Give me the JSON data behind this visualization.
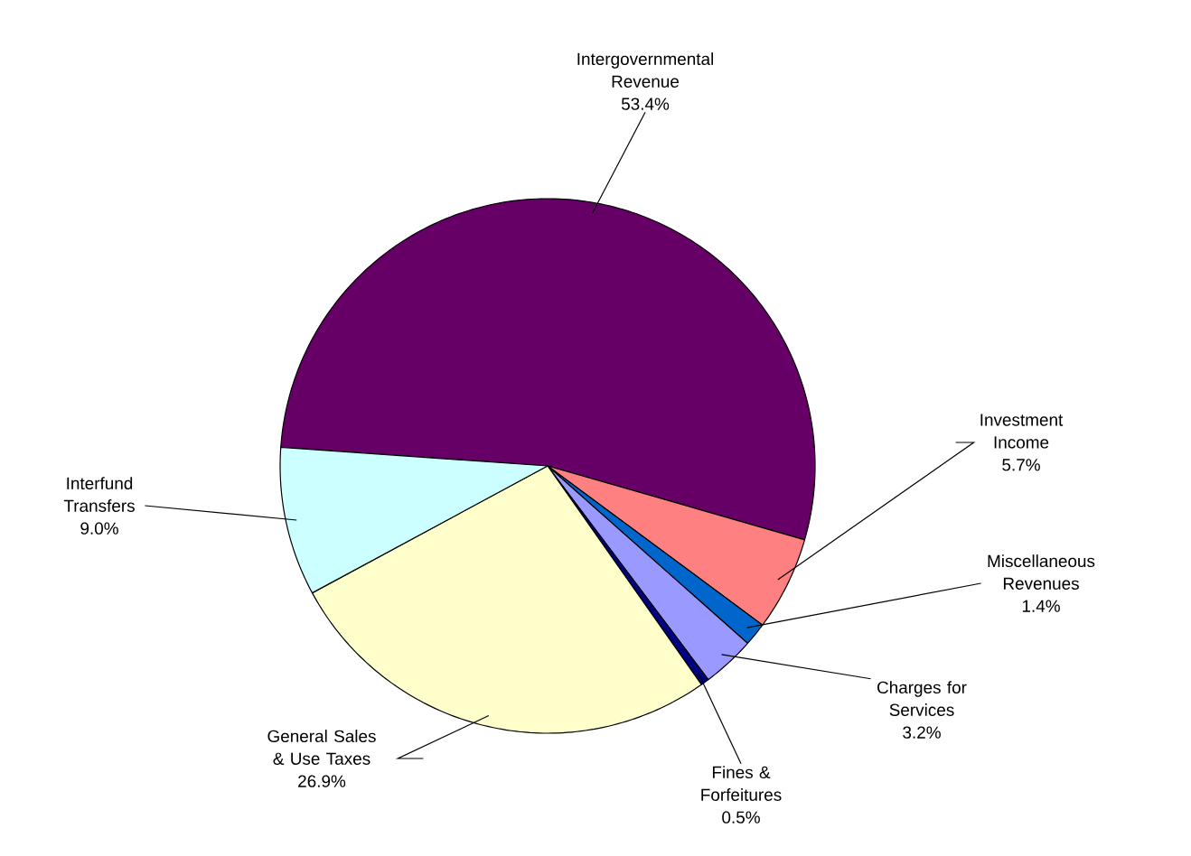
{
  "chart_data": {
    "type": "pie",
    "categories": [
      "Intergovernmental Revenue",
      "Investment Income",
      "Miscellaneous Revenues",
      "Charges for Services",
      "Fines & Forfeitures",
      "General Sales & Use Taxes",
      "Interfund Transfers"
    ],
    "values": [
      53.4,
      5.7,
      1.4,
      3.2,
      0.5,
      26.9,
      9.0
    ],
    "value_labels": [
      "53.4%",
      "5.7%",
      "1.4%",
      "3.2%",
      "0.5%",
      "26.9%",
      "9.0%"
    ],
    "colors": [
      "#660066",
      "#ff8080",
      "#0066cc",
      "#9999ff",
      "#000080",
      "#ffffcc",
      "#ccffff"
    ]
  }
}
